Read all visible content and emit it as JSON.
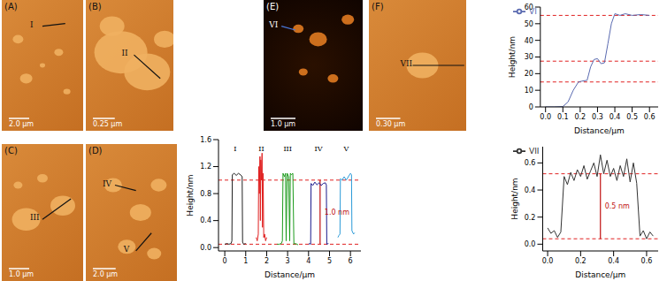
{
  "images": [
    {
      "label": "(A)",
      "scale_bar": "2.0 μm",
      "markers": [
        "I"
      ]
    },
    {
      "label": "(B)",
      "scale_bar": "0.25 μm",
      "markers": [
        "II"
      ]
    },
    {
      "label": "(C)",
      "scale_bar": "1.0 μm",
      "markers": [
        "III"
      ]
    },
    {
      "label": "(D)",
      "scale_bar": "2.0 μm",
      "markers": [
        "IV",
        "V"
      ]
    },
    {
      "label": "(E)",
      "scale_bar": "1.0 μm",
      "markers": [
        "VI"
      ]
    },
    {
      "label": "(F)",
      "scale_bar": "0.30 μm",
      "markers": [
        "VII"
      ]
    }
  ],
  "chart_data": [
    {
      "type": "line",
      "x_label": "Distance/μm",
      "y_label": "Height/nm",
      "xlim": [
        -0.3,
        6.5
      ],
      "xticks": [
        0,
        1,
        2,
        3,
        4,
        5,
        6
      ],
      "ylim": [
        -0.05,
        1.6
      ],
      "yticks": [
        {
          "value": 0,
          "label": "0.0"
        },
        0.4,
        0.8,
        1.2,
        1.6
      ],
      "hlines": [
        1.0,
        0.05
      ],
      "annotations": [
        {
          "text": "1.0 nm",
          "x": 4.55,
          "y_from": 0.05,
          "y_to": 1.0
        }
      ],
      "series": [
        {
          "name": "I",
          "color": "#222222",
          "x": [
            0,
            0.1,
            0.2,
            0.3,
            0.34,
            0.36,
            0.45,
            0.55,
            0.65,
            0.75,
            0.83,
            0.85,
            0.9,
            1.0
          ],
          "values": [
            0.05,
            0.06,
            0.05,
            0.06,
            0.1,
            1.08,
            1.1,
            1.07,
            1.1,
            1.08,
            1.05,
            0.08,
            0.05,
            0.06
          ]
        },
        {
          "name": "II",
          "color": "#e02020",
          "x": [
            1.5,
            1.55,
            1.6,
            1.62,
            1.65,
            1.68,
            1.7,
            1.72,
            1.75,
            1.78,
            1.8,
            1.83,
            1.86,
            1.9,
            1.95,
            2.0
          ],
          "values": [
            0.15,
            0.1,
            0.2,
            1.2,
            0.8,
            1.35,
            0.4,
            1.3,
            1.0,
            1.4,
            0.3,
            1.1,
            0.15,
            0.2,
            0.1,
            0.15
          ]
        },
        {
          "name": "III",
          "color": "#1a9a1a",
          "x": [
            2.5,
            2.6,
            2.7,
            2.75,
            2.78,
            2.85,
            2.9,
            2.93,
            2.98,
            3.05,
            3.1,
            3.13,
            3.18,
            3.25,
            3.3,
            3.35,
            3.45,
            3.5
          ],
          "values": [
            0.05,
            0.05,
            0.06,
            0.1,
            1.1,
            1.05,
            1.1,
            0.1,
            1.1,
            1.05,
            0.1,
            1.1,
            1.08,
            1.1,
            0.05,
            0.06,
            0.05,
            0.04
          ]
        },
        {
          "name": "IV",
          "color": "#1a1a8c",
          "x": [
            4.0,
            4.05,
            4.1,
            4.12,
            4.2,
            4.3,
            4.4,
            4.5,
            4.6,
            4.7,
            4.8,
            4.85,
            4.87,
            4.95
          ],
          "values": [
            0.05,
            0.06,
            0.05,
            0.95,
            0.92,
            0.97,
            0.93,
            0.96,
            0.92,
            0.95,
            0.96,
            0.93,
            0.05,
            0.06
          ]
        },
        {
          "name": "V",
          "color": "#2a9ad8",
          "x": [
            5.4,
            5.45,
            5.5,
            5.52,
            5.6,
            5.7,
            5.8,
            5.9,
            6.0,
            6.05,
            6.07,
            6.15,
            6.2
          ],
          "values": [
            0.15,
            0.18,
            0.2,
            1.02,
            1.0,
            1.05,
            1.0,
            1.05,
            1.1,
            1.08,
            0.25,
            0.2,
            0.22
          ]
        }
      ]
    },
    {
      "type": "line",
      "x_label": "Distance/μm",
      "y_label": "Height/nm",
      "xlim": [
        -0.03,
        0.65
      ],
      "xticks": [
        {
          "value": 0,
          "label": "0.0"
        },
        0.1,
        0.2,
        0.3,
        0.4,
        0.5,
        0.6
      ],
      "ylim": [
        0,
        60
      ],
      "yticks": [
        0,
        10,
        20,
        30,
        40,
        50,
        60
      ],
      "hlines": [
        15,
        27.5,
        55
      ],
      "legend": "upper left",
      "series": [
        {
          "name": "VI",
          "color": "#5a6ab0",
          "x": [
            0,
            0.05,
            0.1,
            0.13,
            0.16,
            0.19,
            0.21,
            0.24,
            0.26,
            0.28,
            0.3,
            0.32,
            0.34,
            0.36,
            0.38,
            0.4,
            0.43,
            0.46,
            0.5,
            0.55,
            0.6
          ],
          "values": [
            0,
            0,
            0.2,
            3,
            10,
            15,
            15.5,
            16,
            24,
            28.5,
            29,
            26,
            26.5,
            38,
            50,
            56,
            55,
            56,
            55,
            55.5,
            55
          ]
        }
      ]
    },
    {
      "type": "line",
      "x_label": "Distance/μm",
      "y_label": "Height/nm",
      "xlim": [
        -0.03,
        0.67
      ],
      "xticks": [
        {
          "value": 0,
          "label": "0.0"
        },
        0.2,
        0.4,
        0.6
      ],
      "ylim": [
        -0.05,
        0.72
      ],
      "yticks": [
        {
          "value": 0,
          "label": "0.0"
        },
        0.2,
        0.4,
        0.6
      ],
      "hlines": [
        0.52,
        0.04
      ],
      "annotations": [
        {
          "text": "0.5 nm",
          "x": 0.32,
          "y_from": 0.04,
          "y_to": 0.52
        }
      ],
      "legend": "upper left",
      "series": [
        {
          "name": "VII",
          "color": "#333333",
          "x": [
            0,
            0.02,
            0.04,
            0.06,
            0.08,
            0.1,
            0.12,
            0.14,
            0.16,
            0.18,
            0.2,
            0.22,
            0.24,
            0.26,
            0.28,
            0.3,
            0.32,
            0.34,
            0.36,
            0.38,
            0.4,
            0.42,
            0.44,
            0.46,
            0.48,
            0.5,
            0.52,
            0.54,
            0.56,
            0.58,
            0.6,
            0.62,
            0.64
          ],
          "values": [
            0.12,
            0.08,
            0.1,
            0.05,
            0.09,
            0.5,
            0.44,
            0.53,
            0.47,
            0.55,
            0.5,
            0.58,
            0.48,
            0.54,
            0.6,
            0.5,
            0.66,
            0.52,
            0.62,
            0.5,
            0.56,
            0.47,
            0.58,
            0.5,
            0.63,
            0.46,
            0.6,
            0.45,
            0.06,
            0.1,
            0.04,
            0.09,
            0.06
          ]
        }
      ]
    }
  ]
}
